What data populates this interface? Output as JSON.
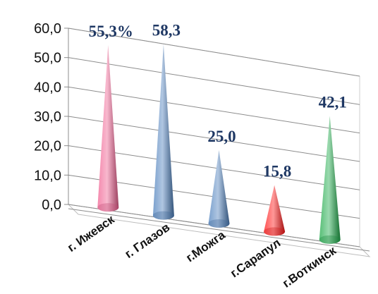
{
  "chart_data": {
    "type": "bar",
    "shape": "3d-cone",
    "title": "",
    "xlabel": "",
    "ylabel": "",
    "ylim": [
      0,
      60
    ],
    "yticks": [
      "0,0",
      "10,0",
      "20,0",
      "30,0",
      "40,0",
      "50,0",
      "60,0"
    ],
    "grid": true,
    "legend": "none",
    "categories": [
      "г. Ижевск",
      "г. Глазов",
      "г.Можга",
      "г.Сарапул",
      "г.Воткинск"
    ],
    "values": [
      55.3,
      58.3,
      25.0,
      15.8,
      42.1
    ],
    "data_labels": [
      "55,3%",
      "58,3",
      "25,0",
      "15,8",
      "42,1"
    ],
    "colors": [
      "#f06292",
      "#4f81bd",
      "#4f81bd",
      "#ff1a1a",
      "#1faa4a"
    ]
  }
}
